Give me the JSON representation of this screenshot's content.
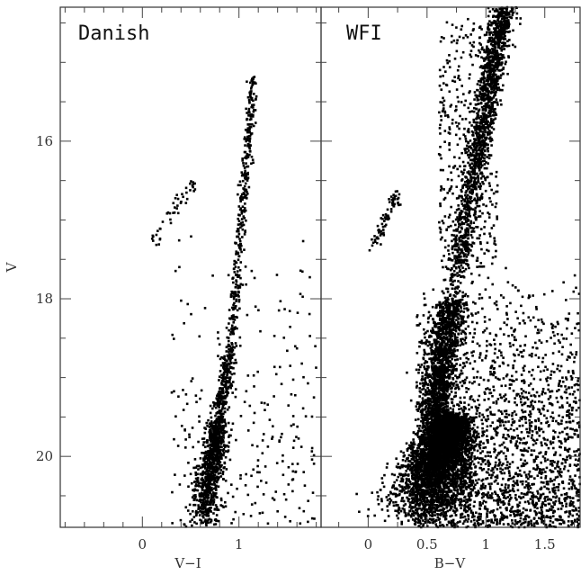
{
  "chart_data": [
    {
      "type": "scatter",
      "title": "Danish",
      "xlabel": "V−I",
      "ylabel": "V",
      "xlim": [
        -0.85,
        1.85
      ],
      "ylim": [
        20.9,
        14.3
      ],
      "y_inverted": true,
      "x_ticks": [
        "0",
        "1"
      ],
      "y_ticks": [
        "16",
        "18",
        "20"
      ],
      "grid": false,
      "legend": "none",
      "color": "#000000",
      "features": {
        "main_sequence": {
          "x": [
            0.62,
            0.78
          ],
          "y": [
            20.9,
            19.6
          ]
        },
        "subgiant_branch": {
          "x": [
            0.78,
            0.92
          ],
          "y": [
            19.6,
            18.6
          ]
        },
        "red_giant_branch": {
          "x": [
            0.92,
            1.15
          ],
          "y": [
            18.6,
            15.2
          ]
        },
        "horizontal_branch": {
          "x": [
            0.1,
            0.55
          ],
          "y": [
            17.3,
            16.5
          ]
        }
      },
      "points_approx": 1900
    },
    {
      "type": "scatter",
      "title": "WFI",
      "xlabel": "B−V",
      "ylabel": "V",
      "xlim": [
        -0.4,
        1.8
      ],
      "ylim": [
        20.9,
        14.3
      ],
      "y_inverted": true,
      "x_ticks": [
        "0",
        "0.5",
        "1",
        "1.5"
      ],
      "y_ticks": [
        "16",
        "18",
        "20"
      ],
      "grid": false,
      "legend": "none",
      "color": "#000000",
      "features": {
        "main_sequence": {
          "x": [
            0.45,
            0.7
          ],
          "y": [
            20.9,
            19.5
          ]
        },
        "subgiant_branch": {
          "x": [
            0.55,
            0.72
          ],
          "y": [
            19.5,
            18.0
          ]
        },
        "red_giant_branch": {
          "x": [
            0.72,
            1.15
          ],
          "y": [
            18.0,
            14.3
          ]
        },
        "horizontal_branch": {
          "x": [
            0.05,
            0.25
          ],
          "y": [
            17.3,
            16.7
          ]
        }
      },
      "points_approx": 9000
    }
  ]
}
